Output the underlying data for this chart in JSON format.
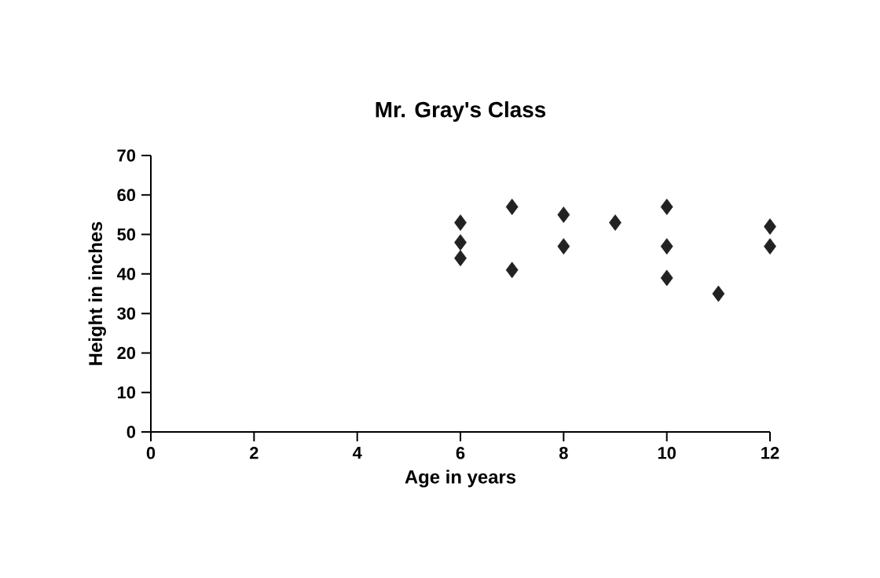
{
  "chart_data": {
    "type": "scatter",
    "title": "Mr. Gray's Class",
    "xlabel": "Age in years",
    "ylabel": "Height in inches",
    "x": [
      6,
      6,
      6,
      7,
      7,
      8,
      8,
      9,
      10,
      10,
      10,
      11,
      12,
      12
    ],
    "values": [
      53,
      48,
      44,
      57,
      41,
      55,
      47,
      53,
      57,
      47,
      39,
      35,
      52,
      47
    ],
    "color": "#222222",
    "marker": "diamond",
    "grid": false,
    "xlim": [
      0,
      12
    ],
    "xticks": [
      0,
      2,
      4,
      6,
      8,
      10,
      12
    ],
    "ylim": [
      0,
      70
    ],
    "yticks": [
      0,
      10,
      20,
      30,
      40,
      50,
      60,
      70
    ]
  }
}
